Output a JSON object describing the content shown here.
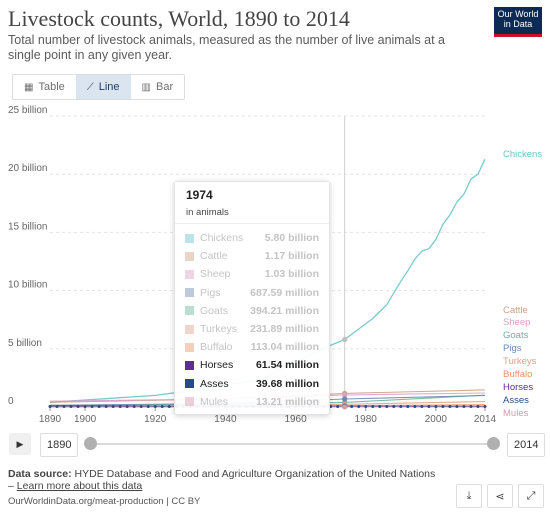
{
  "header": {
    "title": "Livestock counts, World, 1890 to 2014",
    "subtitle": "Total number of livestock animals, measured as the number of live animals at a single point in any given year.",
    "logo": "Our World in Data"
  },
  "tabs": [
    {
      "label": "Table",
      "icon": "table-icon"
    },
    {
      "label": "Line",
      "icon": "line-chart-icon",
      "active": true
    },
    {
      "label": "Bar",
      "icon": "bar-chart-icon"
    }
  ],
  "chart_data": {
    "type": "line",
    "ylim": [
      0,
      25000000000
    ],
    "xlim": [
      1890,
      2014
    ],
    "grid": true,
    "legend_placement": "right",
    "y_ticks": [
      {
        "value": 0,
        "label": "0"
      },
      {
        "value": 5000000000,
        "label": "5 billion"
      },
      {
        "value": 10000000000,
        "label": "10 billion"
      },
      {
        "value": 15000000000,
        "label": "15 billion"
      },
      {
        "value": 20000000000,
        "label": "20 billion"
      },
      {
        "value": 25000000000,
        "label": "25 billion"
      }
    ],
    "x_ticks": [
      1890,
      1900,
      1920,
      1940,
      1960,
      1980,
      2000,
      2014
    ],
    "hover_year": 1974,
    "series": [
      {
        "name": "Chickens",
        "color": "#6ac3c8",
        "x": [
          1890,
          1900,
          1910,
          1920,
          1930,
          1940,
          1950,
          1960,
          1961,
          1965,
          1970,
          1974,
          1978,
          1982,
          1986,
          1990,
          1992,
          1994,
          1996,
          1998,
          2000,
          2002,
          2004,
          2006,
          2008,
          2010,
          2012,
          2014
        ],
        "y": [
          400000000,
          600000000,
          800000000,
          1000000000,
          1400000000,
          1900000000,
          2300000000,
          3900000000,
          4000000000,
          4600000000,
          5300000000,
          5800000000,
          6700000000,
          7600000000,
          8800000000,
          10800000000,
          11700000000,
          12700000000,
          13400000000,
          13600000000,
          14400000000,
          15700000000,
          16500000000,
          17600000000,
          18300000000,
          19600000000,
          20000000000,
          21300000000
        ]
      },
      {
        "name": "Cattle",
        "color": "#c9a585",
        "x": [
          1890,
          1940,
          1974,
          2014
        ],
        "y": [
          400000000,
          700000000,
          1170000000,
          1470000000
        ]
      },
      {
        "name": "Sheep",
        "color": "#d9a0c8",
        "x": [
          1890,
          1940,
          1974,
          2014
        ],
        "y": [
          500000000,
          700000000,
          1030000000,
          1200000000
        ]
      },
      {
        "name": "Goats",
        "color": "#6ab59a",
        "x": [
          1890,
          1940,
          1974,
          2014
        ],
        "y": [
          150000000,
          250000000,
          394210000,
          1010000000
        ]
      },
      {
        "name": "Pigs",
        "color": "#6d89ad",
        "x": [
          1890,
          1940,
          1974,
          2014
        ],
        "y": [
          150000000,
          300000000,
          687590000,
          990000000
        ]
      },
      {
        "name": "Turkeys",
        "color": "#d9a58e",
        "x": [
          1890,
          1940,
          1974,
          2014
        ],
        "y": [
          30000000,
          100000000,
          231890000,
          460000000
        ]
      },
      {
        "name": "Buffalo",
        "color": "#e8926a",
        "x": [
          1890,
          1940,
          1974,
          2014
        ],
        "y": [
          30000000,
          70000000,
          113040000,
          200000000
        ]
      },
      {
        "name": "Horses",
        "color": "#5d2e8c",
        "x": [
          1890,
          1940,
          1974,
          2014
        ],
        "y": [
          80000000,
          90000000,
          61540000,
          59000000
        ]
      },
      {
        "name": "Asses",
        "color": "#284b87",
        "x": [
          1890,
          1940,
          1974,
          2014
        ],
        "y": [
          30000000,
          35000000,
          39680000,
          44000000
        ]
      },
      {
        "name": "Mules",
        "color": "#d79aa9",
        "x": [
          1890,
          1940,
          1974,
          2014
        ],
        "y": [
          10000000,
          12000000,
          13210000,
          10000000
        ]
      }
    ]
  },
  "tooltip": {
    "year": "1974",
    "unit": "in animals",
    "rows": [
      {
        "name": "Chickens",
        "value": "5.80 billion",
        "color": "#6ac3c8",
        "dim": true
      },
      {
        "name": "Cattle",
        "value": "1.17 billion",
        "color": "#c9a585",
        "dim": true
      },
      {
        "name": "Sheep",
        "value": "1.03 billion",
        "color": "#d9a0c8",
        "dim": true
      },
      {
        "name": "Pigs",
        "value": "687.59 million",
        "color": "#6d89ad",
        "dim": true
      },
      {
        "name": "Goats",
        "value": "394.21 million",
        "color": "#6ab59a",
        "dim": true
      },
      {
        "name": "Turkeys",
        "value": "231.89 million",
        "color": "#d9a58e",
        "dim": true
      },
      {
        "name": "Buffalo",
        "value": "113.04 million",
        "color": "#e8926a",
        "dim": true
      },
      {
        "name": "Horses",
        "value": "61.54 million",
        "color": "#5d2e8c",
        "dim": false
      },
      {
        "name": "Asses",
        "value": "39.68 million",
        "color": "#284b87",
        "dim": false
      },
      {
        "name": "Mules",
        "value": "13.21 million",
        "color": "#d79aa9",
        "dim": true
      }
    ]
  },
  "timeline": {
    "start_year": "1890",
    "end_year": "2014",
    "play_icon": "play-icon"
  },
  "footer": {
    "source_label": "Data source:",
    "source_text": "HYDE Database and Food and Agriculture Organization of the United Nations – ",
    "learn_more": "Learn more about this data",
    "url": "OurWorldinData.org/meat-production | CC BY"
  },
  "actions": [
    "download-icon",
    "share-icon",
    "fullscreen-icon"
  ]
}
